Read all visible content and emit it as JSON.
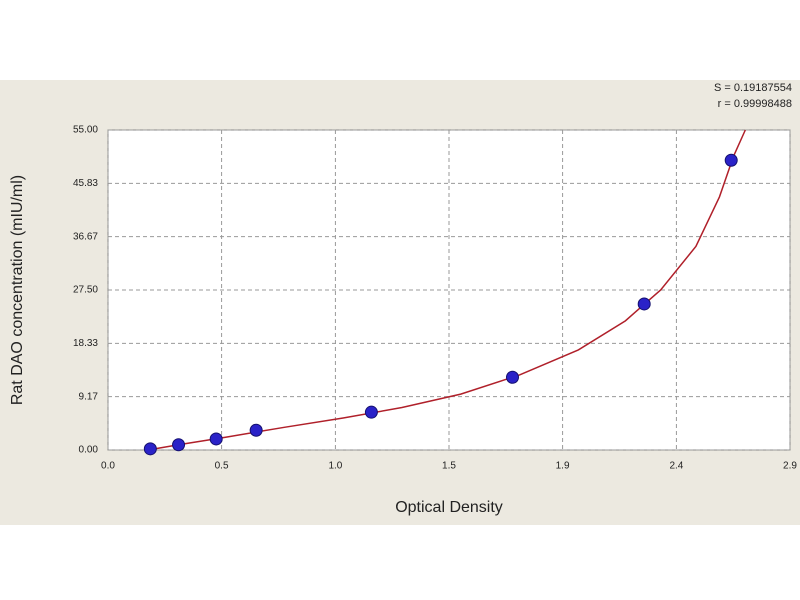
{
  "chart_data": {
    "type": "scatter",
    "xlabel": "Optical Density",
    "ylabel": "Rat DAO concentration (mIU/ml)",
    "annotations": [
      "S = 0.19187554",
      "r = 0.99998488"
    ],
    "x": [
      0.18,
      0.3,
      0.46,
      0.63,
      1.12,
      1.72,
      2.28,
      2.65
    ],
    "values": [
      0.2,
      0.9,
      1.9,
      3.4,
      6.5,
      12.5,
      25.1,
      49.8
    ],
    "color": "#2a22c8",
    "fit": {
      "type": "line",
      "color": "#b0202a",
      "x": [
        0.17,
        0.3,
        0.5,
        0.75,
        1.0,
        1.25,
        1.5,
        1.75,
        2.0,
        2.2,
        2.35,
        2.5,
        2.6,
        2.66,
        2.71
      ],
      "values": [
        0,
        0.9,
        2.2,
        3.9,
        5.5,
        7.3,
        9.6,
        12.9,
        17.2,
        22.2,
        27.5,
        35,
        43.5,
        50.5,
        55
      ]
    },
    "xlim": [
      0,
      2.9
    ],
    "xticks": [
      {
        "value": 0,
        "label": "0.0"
      },
      {
        "value": 0.483,
        "label": "0.5"
      },
      {
        "value": 0.967,
        "label": "1.0"
      },
      {
        "value": 1.45,
        "label": "1.5"
      },
      {
        "value": 1.933,
        "label": "1.9"
      },
      {
        "value": 2.417,
        "label": "2.4"
      },
      {
        "value": 2.9,
        "label": "2.9"
      }
    ],
    "ylim": [
      0,
      55
    ],
    "yticks": [
      {
        "value": 0,
        "label": "0.00"
      },
      9.17,
      18.33,
      {
        "value": 27.5,
        "label": "27.50"
      },
      36.67,
      45.83,
      {
        "value": 55,
        "label": "55.00"
      }
    ],
    "grid": true
  }
}
